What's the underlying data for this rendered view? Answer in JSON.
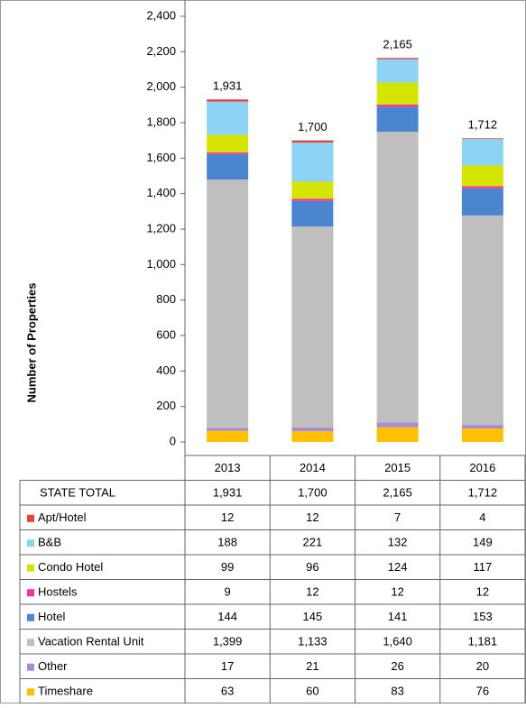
{
  "chart_data": {
    "type": "stacked_bar",
    "y_label": "Number of Properties",
    "categories": [
      "2013",
      "2014",
      "2015",
      "2016"
    ],
    "ylim": [
      0,
      2400
    ],
    "yticks": [
      0,
      200,
      400,
      600,
      800,
      {
        "value": 1000,
        "label": "1,000"
      },
      {
        "value": 1200,
        "label": "1,200"
      },
      {
        "value": 1400,
        "label": "1,400"
      },
      {
        "value": 1600,
        "label": "1,600"
      },
      {
        "value": 1800,
        "label": "1,800"
      },
      {
        "value": 2000,
        "label": "2,000"
      },
      {
        "value": 2200,
        "label": "2,200"
      },
      {
        "value": 2400,
        "label": "2,400"
      }
    ],
    "totals": {
      "name": "STATE TOTAL",
      "values": [
        1931,
        1700,
        2165,
        1712
      ],
      "value_labels": [
        "1,931",
        "1,700",
        "2,165",
        "1,712"
      ]
    },
    "series": [
      {
        "name": "Apt/Hotel",
        "color": "#e8403c",
        "values": [
          12,
          12,
          7,
          4
        ]
      },
      {
        "name": "B&B",
        "color": "#8dd3f5",
        "values": [
          188,
          221,
          132,
          149
        ]
      },
      {
        "name": "Condo Hotel",
        "color": "#d4e600",
        "values": [
          99,
          96,
          124,
          117
        ]
      },
      {
        "name": "Hostels",
        "color": "#ff2f9b",
        "values": [
          9,
          12,
          12,
          12
        ]
      },
      {
        "name": "Hotel",
        "color": "#4a86d0",
        "values": [
          144,
          145,
          141,
          153
        ]
      },
      {
        "name": "Vacation Rental Unit",
        "color": "#bfbfbf",
        "values": [
          1399,
          1133,
          1640,
          1181
        ],
        "value_labels": [
          "1,399",
          "1,133",
          "1,640",
          "1,181"
        ]
      },
      {
        "name": "Other",
        "color": "#a98ad6",
        "values": [
          17,
          21,
          26,
          20
        ]
      },
      {
        "name": "Timeshare",
        "color": "#ffc000",
        "values": [
          63,
          60,
          83,
          76
        ]
      }
    ]
  }
}
